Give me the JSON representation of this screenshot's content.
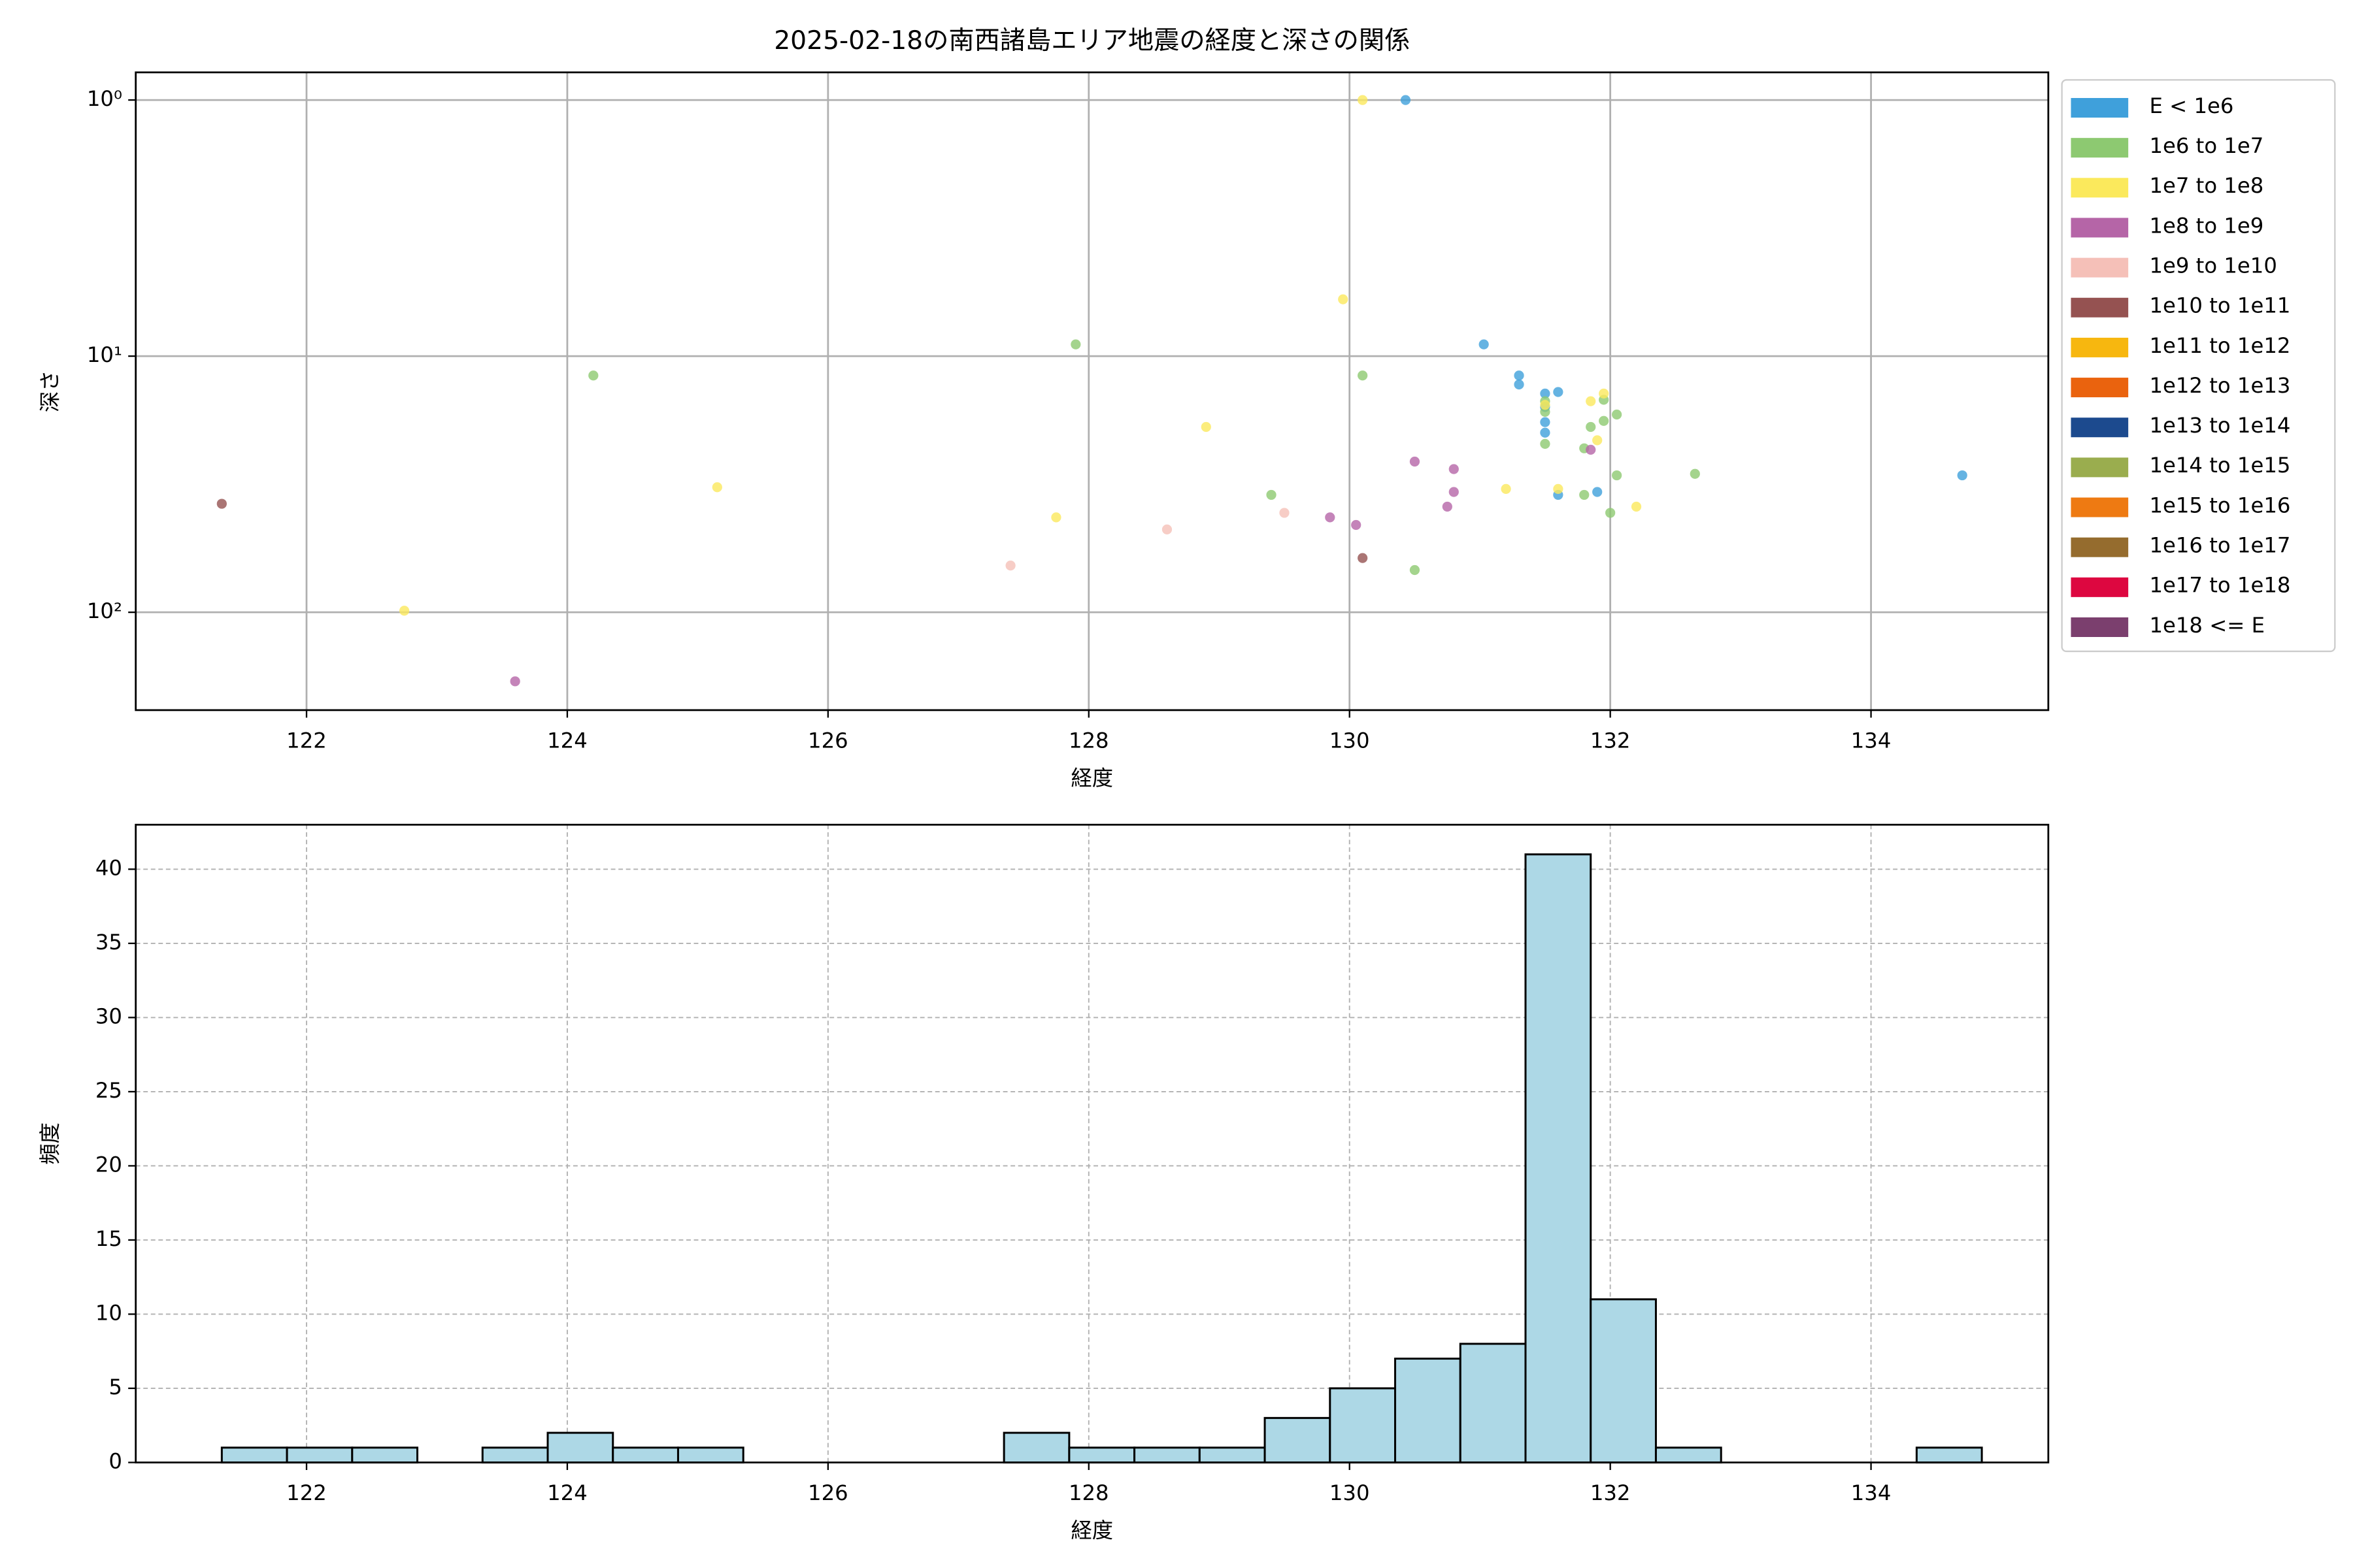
{
  "chart_data": [
    {
      "type": "scatter",
      "title": "2025-02-18の南西諸島エリア地震の経度と深さの関係",
      "x_label": "経度",
      "y_label": "深さ",
      "xlim": [
        120.69,
        135.36
      ],
      "xticks": [
        122,
        124,
        126,
        128,
        130,
        132,
        134
      ],
      "ylog": true,
      "ylim": [
        241,
        0.78
      ],
      "yticks": [
        {
          "value": 1,
          "label": "10⁰"
        },
        {
          "value": 10,
          "label": "10¹"
        },
        {
          "value": 100,
          "label": "10²"
        }
      ],
      "grid": true,
      "grid_style": "solid",
      "legend": "outside right",
      "series": [
        {
          "name": "E < 1e6",
          "color": "#3fa0db",
          "x": [
            130.43,
            131.03,
            131.3,
            131.3,
            131.5,
            131.5,
            131.5,
            131.5,
            131.6,
            131.6,
            131.9,
            134.7
          ],
          "y": [
            1.0,
            9.0,
            11.9,
            12.9,
            14.0,
            15.8,
            18.1,
            19.9,
            13.8,
            34.8,
            33.9,
            29.2
          ]
        },
        {
          "name": "1e6 to 1e7",
          "color": "#8dc971",
          "x": [
            124.2,
            127.9,
            129.4,
            130.1,
            130.5,
            131.5,
            131.5,
            131.5,
            131.8,
            131.8,
            131.85,
            131.95,
            131.95,
            132.05,
            132.05,
            132.0,
            132.65
          ],
          "y": [
            11.9,
            9.0,
            34.8,
            11.9,
            68.4,
            15.0,
            16.5,
            22.0,
            34.8,
            22.9,
            18.9,
            14.8,
            17.9,
            16.9,
            29.2,
            40.9,
            28.8
          ]
        },
        {
          "name": "1e7 to 1e8",
          "color": "#fbe95c",
          "x": [
            122.75,
            125.15,
            127.75,
            128.9,
            129.95,
            130.1,
            131.2,
            131.5,
            131.6,
            131.85,
            131.9,
            131.95,
            132.2
          ],
          "y": [
            98.6,
            32.5,
            42.6,
            18.9,
            6.0,
            1.0,
            33.0,
            15.5,
            33.0,
            15.0,
            21.3,
            14.0,
            38.7
          ]
        },
        {
          "name": "1e8 to 1e9",
          "color": "#b565a7",
          "x": [
            123.6,
            129.85,
            130.05,
            130.5,
            130.8,
            130.8,
            130.75,
            131.85
          ],
          "y": [
            186,
            42.6,
            45.6,
            25.8,
            27.6,
            33.9,
            38.7,
            23.2
          ]
        },
        {
          "name": "1e9 to 1e10",
          "color": "#f5c0b8",
          "x": [
            127.4,
            128.6,
            129.5
          ],
          "y": [
            65.7,
            47.5,
            40.9
          ]
        },
        {
          "name": "1e10 to 1e11",
          "color": "#955251",
          "x": [
            121.35,
            130.1
          ],
          "y": [
            37.7,
            61.4
          ]
        },
        {
          "name": "1e11 to 1e12",
          "color": "#f7b70f",
          "x": [],
          "y": []
        },
        {
          "name": "1e12 to 1e13",
          "color": "#ea630e",
          "x": [],
          "y": []
        },
        {
          "name": "1e13 to 1e14",
          "color": "#1c4a8e",
          "x": [],
          "y": []
        },
        {
          "name": "1e14 to 1e15",
          "color": "#9aad4e",
          "x": [],
          "y": []
        },
        {
          "name": "1e15 to 1e16",
          "color": "#ee7a12",
          "x": [],
          "y": []
        },
        {
          "name": "1e16 to 1e17",
          "color": "#956c2e",
          "x": [],
          "y": []
        },
        {
          "name": "1e17 to 1e18",
          "color": "#dd0740",
          "x": [],
          "y": []
        },
        {
          "name": "1e18 <= E",
          "color": "#7b3f6e",
          "x": [],
          "y": []
        }
      ]
    },
    {
      "type": "histogram",
      "x_label": "経度",
      "y_label": "頻度",
      "xlim": [
        120.69,
        135.36
      ],
      "xticks": [
        122,
        124,
        126,
        128,
        130,
        132,
        134
      ],
      "ylim": [
        0,
        43
      ],
      "yticks": [
        0,
        5,
        10,
        15,
        20,
        25,
        30,
        35,
        40
      ],
      "grid": true,
      "grid_style": "dashed",
      "color": "#add8e6",
      "bins": [
        121.35,
        121.85,
        122.35,
        122.85,
        123.35,
        123.85,
        124.35,
        124.85,
        125.35,
        125.85,
        126.35,
        126.85,
        127.35,
        127.85,
        128.35,
        128.85,
        129.35,
        129.85,
        130.35,
        130.85,
        131.35,
        131.85,
        132.35,
        132.85,
        133.35,
        133.85,
        134.35,
        134.85
      ],
      "values": [
        1,
        1,
        1,
        0,
        1,
        2,
        1,
        1,
        0,
        0,
        0,
        0,
        2,
        1,
        1,
        1,
        3,
        5,
        7,
        8,
        41,
        11,
        1,
        0,
        0,
        0,
        1
      ]
    }
  ]
}
